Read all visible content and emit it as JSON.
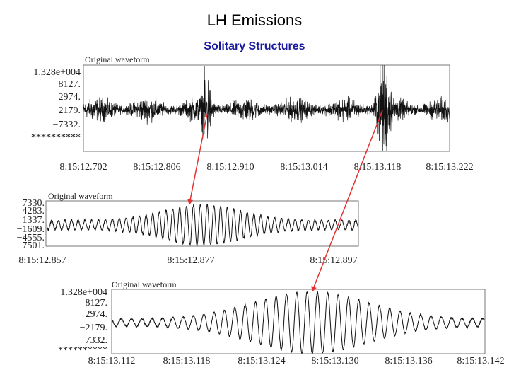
{
  "slide": {
    "title": "LH Emissions",
    "subtitle": "Solitary Structures"
  },
  "colors": {
    "arrow": "#e53030",
    "trace": "#111111",
    "subtitle": "#1a1a9c"
  },
  "chart_data": [
    {
      "type": "line",
      "panel_title": "Original waveform",
      "y_ticks": [
        "1.328e+004",
        "8127.",
        "2974.",
        "−2179.",
        "−7332.",
        "**********"
      ],
      "x_ticks": [
        "8:15:12.702",
        "8:15:12.806",
        "8:15:12.910",
        "8:15:13.014",
        "8:15:13.118",
        "8:15:13.222"
      ],
      "x_range_s": [
        12.702,
        13.222
      ],
      "noise_amplitude": 2500,
      "bursts": [
        {
          "center_s": 12.877,
          "width_s": 0.006,
          "amplitude": 7500
        },
        {
          "center_s": 13.128,
          "width_s": 0.009,
          "amplitude": 11000
        }
      ]
    },
    {
      "type": "line",
      "panel_title": "Original waveform",
      "y_ticks": [
        "7330.",
        "4283.",
        "1337.",
        "−1609.",
        "−4555.",
        "−7501."
      ],
      "x_ticks": [
        "8:15:12.857",
        "8:15:12.877",
        "8:15:12.897"
      ],
      "x_range_s": [
        12.857,
        12.897
      ],
      "burst_center_s": 12.877,
      "burst_amplitude": 7000
    },
    {
      "type": "line",
      "panel_title": "Original waveform",
      "y_ticks": [
        "1.328e+004",
        "8127.",
        "2974.",
        "−2179.",
        "−7332.",
        "**********"
      ],
      "x_ticks": [
        "8:15:13.112",
        "8:15:13.118",
        "8:15:13.124",
        "8:15:13.130",
        "8:15:13.136",
        "8:15:13.142"
      ],
      "x_range_s": [
        13.112,
        13.142
      ],
      "burst_center_s": 13.128,
      "burst_amplitude": 12000
    }
  ]
}
